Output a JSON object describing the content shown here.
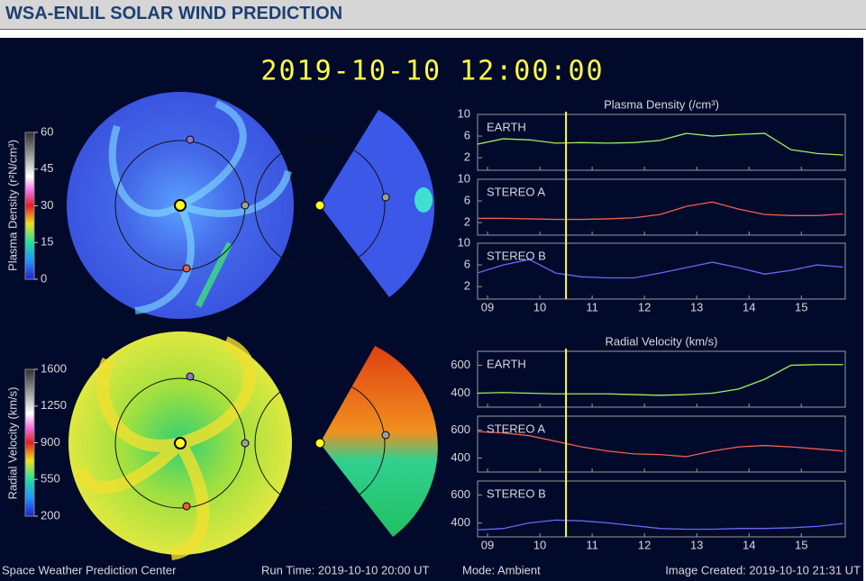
{
  "header": {
    "title": "WSA-ENLIL SOLAR WIND PREDICTION"
  },
  "timestamp": "2019-10-10  12:00:00",
  "colorbars": [
    {
      "label": "Plasma Density (r²N/cm³)",
      "lim": [
        0,
        60
      ],
      "ticks": [
        60,
        45,
        30,
        15,
        0
      ]
    },
    {
      "label": "Radial Velocity (km/s)",
      "lim": [
        200,
        1600
      ],
      "ticks": [
        1600,
        1250,
        900,
        550,
        200
      ]
    }
  ],
  "chart_data": [
    {
      "type": "line",
      "title": "Plasma Density (/cm³)",
      "x": [
        8.8,
        9.3,
        9.8,
        10.3,
        10.8,
        11.3,
        11.8,
        12.3,
        12.8,
        13.3,
        13.8,
        14.3,
        14.8,
        15.3,
        15.8
      ],
      "xlim": [
        8.81,
        15.84
      ],
      "xticks": [
        {
          "value": 9,
          "label": "09"
        },
        {
          "value": 10,
          "label": "10"
        },
        {
          "value": 11,
          "label": "11"
        },
        {
          "value": 12,
          "label": "12"
        },
        {
          "value": 13,
          "label": "13"
        },
        {
          "value": 14,
          "label": "14"
        },
        {
          "value": 15,
          "label": "15"
        }
      ],
      "ylim": [
        -0.3,
        10
      ],
      "yticks": [
        2,
        6,
        10
      ],
      "marker_x": 10.5,
      "series": [
        {
          "name": "EARTH",
          "color": "#9cf060",
          "values": [
            4.5,
            5.5,
            5.3,
            4.7,
            4.8,
            4.7,
            4.8,
            5.2,
            6.5,
            6.0,
            6.3,
            6.5,
            3.5,
            2.8,
            2.5
          ]
        },
        {
          "name": "STEREO A",
          "color": "#f06050",
          "values": [
            2.8,
            2.8,
            2.7,
            2.6,
            2.6,
            2.7,
            2.9,
            3.5,
            5.0,
            5.8,
            4.5,
            3.5,
            3.3,
            3.3,
            3.6
          ]
        },
        {
          "name": "STEREO B",
          "color": "#6868f0",
          "values": [
            4.5,
            6.0,
            7.0,
            4.5,
            3.8,
            3.6,
            3.6,
            4.5,
            5.5,
            6.5,
            5.5,
            4.3,
            5.0,
            6.0,
            5.6
          ]
        }
      ]
    },
    {
      "type": "line",
      "title": "Radial Velocity (km/s)",
      "x": [
        8.8,
        9.3,
        9.8,
        10.3,
        10.8,
        11.3,
        11.8,
        12.3,
        12.8,
        13.3,
        13.8,
        14.3,
        14.8,
        15.3,
        15.8
      ],
      "xlim": [
        8.81,
        15.84
      ],
      "xticks": [
        {
          "value": 9,
          "label": "09"
        },
        {
          "value": 10,
          "label": "10"
        },
        {
          "value": 11,
          "label": "11"
        },
        {
          "value": 12,
          "label": "12"
        },
        {
          "value": 13,
          "label": "13"
        },
        {
          "value": 14,
          "label": "14"
        },
        {
          "value": 15,
          "label": "15"
        }
      ],
      "ylim": [
        300,
        700
      ],
      "yticks": [
        400,
        600
      ],
      "marker_x": 10.5,
      "series": [
        {
          "name": "EARTH",
          "color": "#9cf060",
          "values": [
            400,
            405,
            400,
            395,
            395,
            395,
            390,
            385,
            390,
            400,
            430,
            500,
            600,
            605,
            605
          ]
        },
        {
          "name": "STEREO A",
          "color": "#f06050",
          "values": [
            590,
            580,
            560,
            520,
            480,
            450,
            430,
            425,
            410,
            450,
            480,
            490,
            480,
            465,
            450
          ]
        },
        {
          "name": "STEREO B",
          "color": "#6868f0",
          "values": [
            350,
            360,
            400,
            420,
            415,
            400,
            380,
            360,
            355,
            355,
            360,
            360,
            365,
            375,
            395
          ]
        }
      ]
    }
  ],
  "footer": {
    "center": "Space Weather Prediction Center",
    "run_time": "Run Time: 2019-10-10 20:00 UT",
    "mode": "Mode: Ambient",
    "created": "Image Created: 2019-10-10 21:31 UT"
  }
}
